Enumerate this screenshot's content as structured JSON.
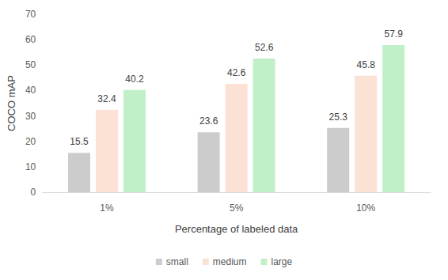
{
  "chart_data": {
    "type": "bar",
    "categories": [
      "1%",
      "5%",
      "10%"
    ],
    "series": [
      {
        "name": "small",
        "color": "#cccccc",
        "values": [
          15.5,
          23.6,
          25.3
        ]
      },
      {
        "name": "medium",
        "color": "#fbe2d5",
        "values": [
          32.4,
          42.6,
          45.8
        ]
      },
      {
        "name": "large",
        "color": "#c1f0c8",
        "values": [
          40.2,
          52.6,
          57.9
        ]
      }
    ],
    "x_label": "Percentage of labeled data",
    "y_label": "COCO mAP",
    "ylim": [
      0,
      70
    ],
    "yticks": [
      0,
      10,
      20,
      30,
      40,
      50,
      60,
      70
    ],
    "grid": false,
    "legend": "bottom",
    "data_labels": true
  }
}
